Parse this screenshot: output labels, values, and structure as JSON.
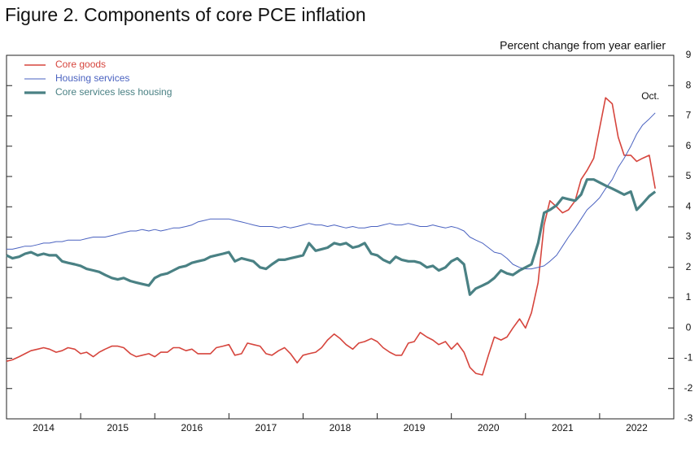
{
  "chart_data": {
    "type": "line",
    "title": "Figure 2. Components of core PCE inflation",
    "y_label": "Percent change from year earlier",
    "annotation": "Oct.",
    "legend": "top-left",
    "grid": false,
    "xlim": [
      2014,
      2023
    ],
    "xticks": [
      2014,
      2015,
      2016,
      2017,
      2018,
      2019,
      2020,
      2021,
      2022
    ],
    "ylim": [
      -3,
      9
    ],
    "yticks": [
      -3,
      -2,
      -1,
      0,
      1,
      2,
      3,
      4,
      5,
      6,
      7,
      8,
      9
    ],
    "x": [
      2014.0,
      2014.08,
      2014.17,
      2014.25,
      2014.33,
      2014.42,
      2014.5,
      2014.58,
      2014.67,
      2014.75,
      2014.83,
      2014.92,
      2015.0,
      2015.08,
      2015.17,
      2015.25,
      2015.33,
      2015.42,
      2015.5,
      2015.58,
      2015.67,
      2015.75,
      2015.83,
      2015.92,
      2016.0,
      2016.08,
      2016.17,
      2016.25,
      2016.33,
      2016.42,
      2016.5,
      2016.58,
      2016.67,
      2016.75,
      2016.83,
      2016.92,
      2017.0,
      2017.08,
      2017.17,
      2017.25,
      2017.33,
      2017.42,
      2017.5,
      2017.58,
      2017.67,
      2017.75,
      2017.83,
      2017.92,
      2018.0,
      2018.08,
      2018.17,
      2018.25,
      2018.33,
      2018.42,
      2018.5,
      2018.58,
      2018.67,
      2018.75,
      2018.83,
      2018.92,
      2019.0,
      2019.08,
      2019.17,
      2019.25,
      2019.33,
      2019.42,
      2019.5,
      2019.58,
      2019.67,
      2019.75,
      2019.83,
      2019.92,
      2020.0,
      2020.08,
      2020.17,
      2020.25,
      2020.33,
      2020.42,
      2020.5,
      2020.58,
      2020.67,
      2020.75,
      2020.83,
      2020.92,
      2021.0,
      2021.08,
      2021.17,
      2021.25,
      2021.33,
      2021.42,
      2021.5,
      2021.58,
      2021.67,
      2021.75,
      2021.83,
      2021.92,
      2022.0,
      2022.08,
      2022.17,
      2022.25,
      2022.33,
      2022.42,
      2022.5,
      2022.58,
      2022.67,
      2022.75
    ],
    "series": [
      {
        "name": "Core goods",
        "color": "#d6453d",
        "width": 1.6,
        "values": [
          -1.1,
          -1.05,
          -0.95,
          -0.85,
          -0.75,
          -0.7,
          -0.65,
          -0.7,
          -0.8,
          -0.75,
          -0.65,
          -0.7,
          -0.85,
          -0.8,
          -0.95,
          -0.8,
          -0.7,
          -0.6,
          -0.6,
          -0.65,
          -0.85,
          -0.95,
          -0.9,
          -0.85,
          -0.95,
          -0.8,
          -0.8,
          -0.65,
          -0.65,
          -0.75,
          -0.7,
          -0.85,
          -0.85,
          -0.85,
          -0.65,
          -0.6,
          -0.55,
          -0.9,
          -0.85,
          -0.5,
          -0.55,
          -0.6,
          -0.85,
          -0.9,
          -0.75,
          -0.65,
          -0.85,
          -1.15,
          -0.9,
          -0.85,
          -0.8,
          -0.65,
          -0.4,
          -0.2,
          -0.35,
          -0.55,
          -0.7,
          -0.5,
          -0.45,
          -0.35,
          -0.45,
          -0.65,
          -0.8,
          -0.9,
          -0.9,
          -0.5,
          -0.45,
          -0.15,
          -0.3,
          -0.4,
          -0.55,
          -0.45,
          -0.7,
          -0.5,
          -0.8,
          -1.3,
          -1.5,
          -1.55,
          -0.9,
          -0.3,
          -0.4,
          -0.3,
          0.0,
          0.3,
          0.0,
          0.5,
          1.5,
          3.4,
          4.2,
          4.0,
          3.8,
          3.9,
          4.2,
          4.9,
          5.2,
          5.6,
          6.6,
          7.6,
          7.4,
          6.3,
          5.7,
          5.7,
          5.5,
          5.6,
          5.7,
          4.6
        ]
      },
      {
        "name": "Housing services",
        "color": "#4a62c0",
        "width": 1,
        "values": [
          2.6,
          2.6,
          2.65,
          2.7,
          2.7,
          2.75,
          2.8,
          2.8,
          2.85,
          2.85,
          2.9,
          2.9,
          2.9,
          2.95,
          3.0,
          3.0,
          3.0,
          3.05,
          3.1,
          3.15,
          3.2,
          3.2,
          3.25,
          3.2,
          3.25,
          3.2,
          3.25,
          3.3,
          3.3,
          3.35,
          3.4,
          3.5,
          3.55,
          3.6,
          3.6,
          3.6,
          3.6,
          3.55,
          3.5,
          3.45,
          3.4,
          3.35,
          3.35,
          3.35,
          3.3,
          3.35,
          3.3,
          3.35,
          3.4,
          3.45,
          3.4,
          3.4,
          3.35,
          3.4,
          3.35,
          3.3,
          3.35,
          3.3,
          3.3,
          3.35,
          3.35,
          3.4,
          3.45,
          3.4,
          3.4,
          3.45,
          3.4,
          3.35,
          3.35,
          3.4,
          3.35,
          3.3,
          3.35,
          3.3,
          3.2,
          3.0,
          2.9,
          2.8,
          2.65,
          2.5,
          2.45,
          2.3,
          2.1,
          2.0,
          1.95,
          1.95,
          2.0,
          2.05,
          2.2,
          2.4,
          2.7,
          3.0,
          3.3,
          3.6,
          3.9,
          4.1,
          4.3,
          4.6,
          4.9,
          5.3,
          5.6,
          6.0,
          6.4,
          6.7,
          6.9,
          7.1
        ]
      },
      {
        "name": "Core services less housing",
        "color": "#4a8184",
        "width": 3.2,
        "values": [
          2.4,
          2.3,
          2.35,
          2.45,
          2.5,
          2.4,
          2.45,
          2.4,
          2.4,
          2.2,
          2.15,
          2.1,
          2.05,
          1.95,
          1.9,
          1.85,
          1.75,
          1.65,
          1.6,
          1.65,
          1.55,
          1.5,
          1.45,
          1.4,
          1.65,
          1.75,
          1.8,
          1.9,
          2.0,
          2.05,
          2.15,
          2.2,
          2.25,
          2.35,
          2.4,
          2.45,
          2.5,
          2.2,
          2.3,
          2.25,
          2.2,
          2.0,
          1.95,
          2.1,
          2.25,
          2.25,
          2.3,
          2.35,
          2.4,
          2.8,
          2.55,
          2.6,
          2.65,
          2.8,
          2.75,
          2.8,
          2.65,
          2.7,
          2.8,
          2.45,
          2.4,
          2.25,
          2.15,
          2.35,
          2.25,
          2.2,
          2.2,
          2.15,
          2.0,
          2.05,
          1.9,
          2.0,
          2.2,
          2.3,
          2.1,
          1.1,
          1.3,
          1.4,
          1.5,
          1.65,
          1.9,
          1.8,
          1.75,
          1.9,
          2.0,
          2.1,
          2.8,
          3.8,
          3.9,
          4.05,
          4.3,
          4.25,
          4.2,
          4.4,
          4.9,
          4.9,
          4.8,
          4.7,
          4.6,
          4.5,
          4.4,
          4.5,
          3.9,
          4.1,
          4.35,
          4.5
        ]
      }
    ]
  }
}
